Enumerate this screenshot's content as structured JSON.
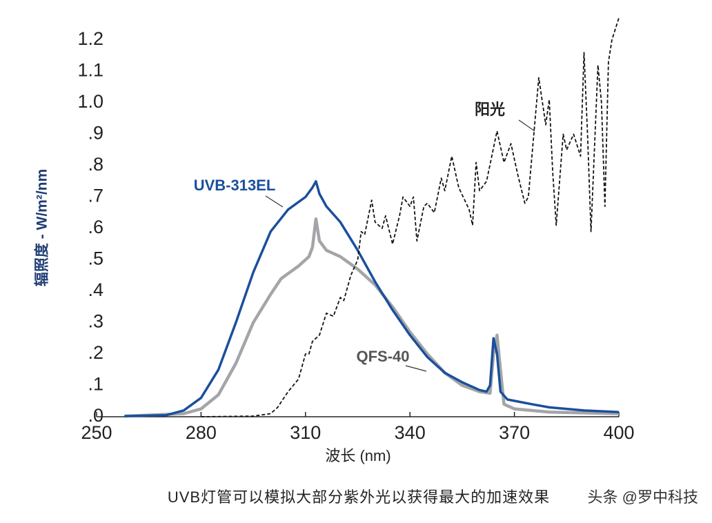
{
  "chart_data": {
    "type": "line",
    "xlabel": "波长 (nm)",
    "ylabel": "辐照度 - W/m²/nm",
    "caption": "UVB灯管可以模拟大部分紫外光以获得最大的加速效果",
    "watermark": "头条 @罗中科技",
    "xlim": [
      250,
      400
    ],
    "xticks": [
      250,
      280,
      310,
      340,
      370,
      400
    ],
    "ylim": [
      0,
      1.2
    ],
    "yticks": [
      {
        "value": 0,
        "label": ".0"
      },
      {
        "value": 0.1,
        "label": ".1"
      },
      {
        "value": 0.2,
        "label": ".2"
      },
      {
        "value": 0.3,
        "label": ".3"
      },
      {
        "value": 0.4,
        "label": ".4"
      },
      {
        "value": 0.5,
        "label": ".5"
      },
      {
        "value": 0.6,
        "label": ".6"
      },
      {
        "value": 0.7,
        "label": ".7"
      },
      {
        "value": 0.8,
        "label": ".8"
      },
      {
        "value": 0.9,
        "label": ".9"
      },
      {
        "value": 1.0,
        "label": "1.0"
      },
      1.1,
      1.2
    ],
    "series": [
      {
        "name": "UVB-313EL",
        "color": "#1a4f9c",
        "style": "solid",
        "x": [
          258,
          270,
          275,
          280,
          285,
          290,
          295,
          300,
          305,
          310,
          312,
          313,
          314,
          316,
          320,
          325,
          330,
          335,
          340,
          345,
          350,
          355,
          360,
          362,
          363,
          364,
          365,
          366,
          368,
          375,
          380,
          390,
          400
        ],
        "values": [
          0.002,
          0.005,
          0.02,
          0.06,
          0.15,
          0.3,
          0.46,
          0.59,
          0.66,
          0.7,
          0.73,
          0.75,
          0.71,
          0.67,
          0.62,
          0.53,
          0.43,
          0.34,
          0.26,
          0.19,
          0.14,
          0.11,
          0.085,
          0.08,
          0.1,
          0.25,
          0.2,
          0.08,
          0.055,
          0.04,
          0.03,
          0.02,
          0.015
        ]
      },
      {
        "name": "QFS-40",
        "color": "#a3a5a8",
        "style": "solid",
        "x": [
          258,
          275,
          280,
          285,
          290,
          295,
          300,
          303,
          308,
          311,
          312,
          313,
          314,
          316,
          320,
          325,
          330,
          335,
          340,
          345,
          350,
          355,
          360,
          363,
          364,
          365,
          366,
          367,
          370,
          380,
          400
        ],
        "values": [
          0.002,
          0.01,
          0.025,
          0.07,
          0.17,
          0.3,
          0.39,
          0.44,
          0.48,
          0.51,
          0.54,
          0.63,
          0.56,
          0.53,
          0.51,
          0.47,
          0.42,
          0.35,
          0.27,
          0.2,
          0.14,
          0.1,
          0.08,
          0.075,
          0.2,
          0.26,
          0.15,
          0.04,
          0.025,
          0.015,
          0.01
        ]
      },
      {
        "name": "阳光",
        "color": "#111111",
        "style": "dashed",
        "x": [
          280,
          295,
          300,
          302,
          305,
          308,
          310,
          311,
          312,
          314,
          316,
          318,
          320,
          321,
          323,
          325,
          326,
          327,
          329,
          330,
          332,
          333,
          335,
          337,
          338,
          340,
          341,
          342,
          344,
          345,
          347,
          349,
          350,
          352,
          354,
          357,
          358,
          359,
          360,
          362,
          365,
          367,
          369,
          371,
          373,
          374,
          377,
          379,
          380,
          381,
          382,
          384,
          385,
          387,
          389,
          390,
          391,
          392,
          394,
          395,
          396,
          397,
          398,
          400
        ],
        "values": [
          0,
          0.002,
          0.01,
          0.03,
          0.08,
          0.12,
          0.2,
          0.2,
          0.24,
          0.26,
          0.33,
          0.32,
          0.38,
          0.37,
          0.45,
          0.5,
          0.59,
          0.58,
          0.69,
          0.62,
          0.6,
          0.64,
          0.55,
          0.64,
          0.7,
          0.67,
          0.7,
          0.56,
          0.67,
          0.68,
          0.65,
          0.76,
          0.72,
          0.83,
          0.73,
          0.66,
          0.61,
          0.81,
          0.72,
          0.75,
          0.91,
          0.81,
          0.87,
          0.77,
          0.68,
          0.7,
          1.08,
          0.93,
          1.01,
          0.78,
          0.61,
          0.9,
          0.85,
          0.9,
          0.83,
          1.16,
          0.9,
          0.59,
          1.12,
          1.0,
          0.67,
          1.13,
          1.2,
          1.27
        ]
      }
    ]
  }
}
